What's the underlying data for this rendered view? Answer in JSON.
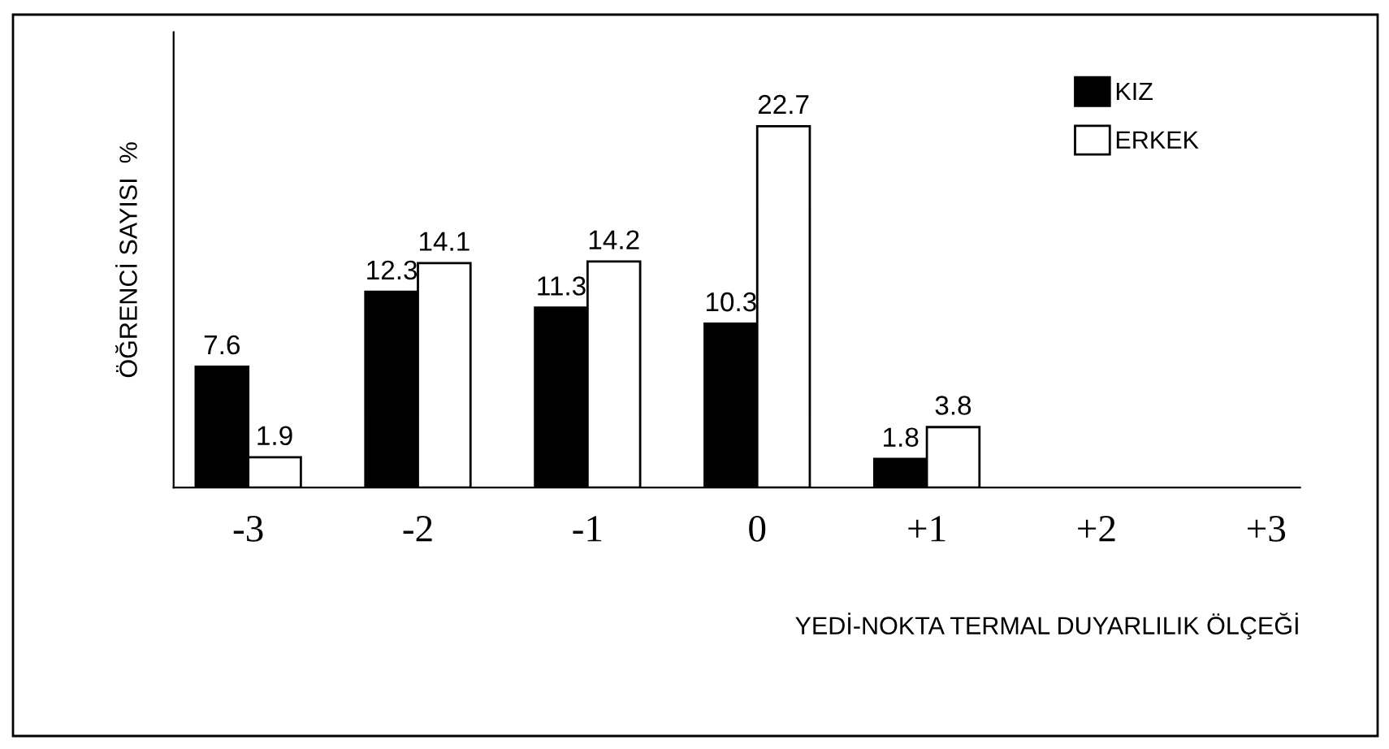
{
  "chart_data": {
    "type": "bar",
    "categories": [
      "-3",
      "-2",
      "-1",
      "0",
      "+1",
      "+2",
      "+3"
    ],
    "series": [
      {
        "name": "KIZ",
        "color": "#000000",
        "values": [
          7.6,
          12.3,
          11.3,
          10.3,
          1.8,
          null,
          null
        ]
      },
      {
        "name": "ERKEK",
        "color": "#ffffff",
        "values": [
          1.9,
          14.1,
          14.2,
          22.7,
          3.8,
          null,
          null
        ]
      }
    ],
    "xlabel": "YEDİ-NOKTA TERMAL DUYARLILIK ÖLÇEĞİ",
    "ylabel": "ÖĞRENCİ SAYISI  %",
    "data_labels": true,
    "legend": "top right",
    "grid": false,
    "tick_labels": "x"
  }
}
